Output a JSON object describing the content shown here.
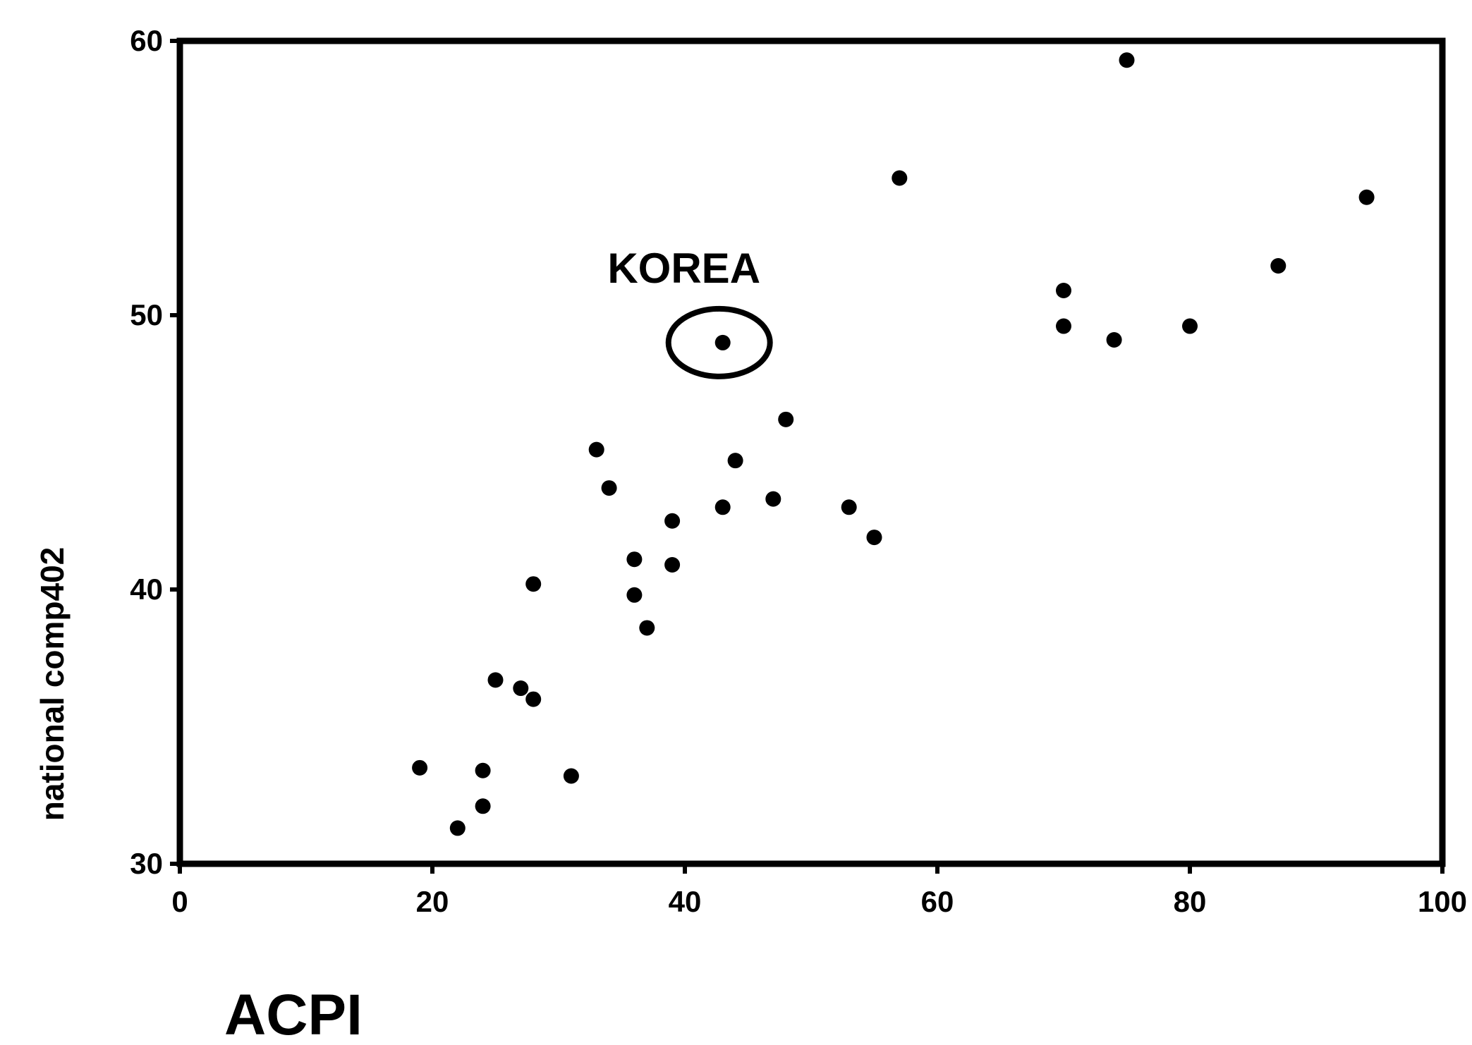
{
  "chart_data": {
    "type": "scatter",
    "title": "",
    "xlabel": "ACPI",
    "ylabel": "national comp402",
    "xlim": [
      0,
      100
    ],
    "ylim": [
      30,
      60
    ],
    "xticks": [
      "0",
      "20",
      "40",
      "60",
      "80",
      "100"
    ],
    "yticks": [
      "30",
      "40",
      "50",
      "60"
    ],
    "grid": false,
    "points": [
      {
        "x": 19,
        "y": 33.5
      },
      {
        "x": 22,
        "y": 31.3
      },
      {
        "x": 24,
        "y": 33.4
      },
      {
        "x": 24,
        "y": 32.1
      },
      {
        "x": 25,
        "y": 36.7
      },
      {
        "x": 27,
        "y": 36.4
      },
      {
        "x": 28,
        "y": 36.0
      },
      {
        "x": 28,
        "y": 40.2
      },
      {
        "x": 31,
        "y": 33.2
      },
      {
        "x": 33,
        "y": 45.1
      },
      {
        "x": 34,
        "y": 43.7
      },
      {
        "x": 36,
        "y": 41.1
      },
      {
        "x": 36,
        "y": 39.8
      },
      {
        "x": 37,
        "y": 38.6
      },
      {
        "x": 39,
        "y": 42.5
      },
      {
        "x": 39,
        "y": 40.9
      },
      {
        "x": 43,
        "y": 49.0
      },
      {
        "x": 43,
        "y": 43.0
      },
      {
        "x": 44,
        "y": 44.7
      },
      {
        "x": 47,
        "y": 43.3
      },
      {
        "x": 48,
        "y": 46.2
      },
      {
        "x": 53,
        "y": 43.0
      },
      {
        "x": 55,
        "y": 41.9
      },
      {
        "x": 57,
        "y": 55.0
      },
      {
        "x": 70,
        "y": 50.9
      },
      {
        "x": 70,
        "y": 49.6
      },
      {
        "x": 74,
        "y": 49.1
      },
      {
        "x": 75,
        "y": 59.3
      },
      {
        "x": 80,
        "y": 49.6
      },
      {
        "x": 87,
        "y": 51.8
      },
      {
        "x": 94,
        "y": 54.3
      }
    ],
    "annotations": [
      {
        "text": "KOREA",
        "x": 43,
        "y": 49.0
      }
    ]
  }
}
